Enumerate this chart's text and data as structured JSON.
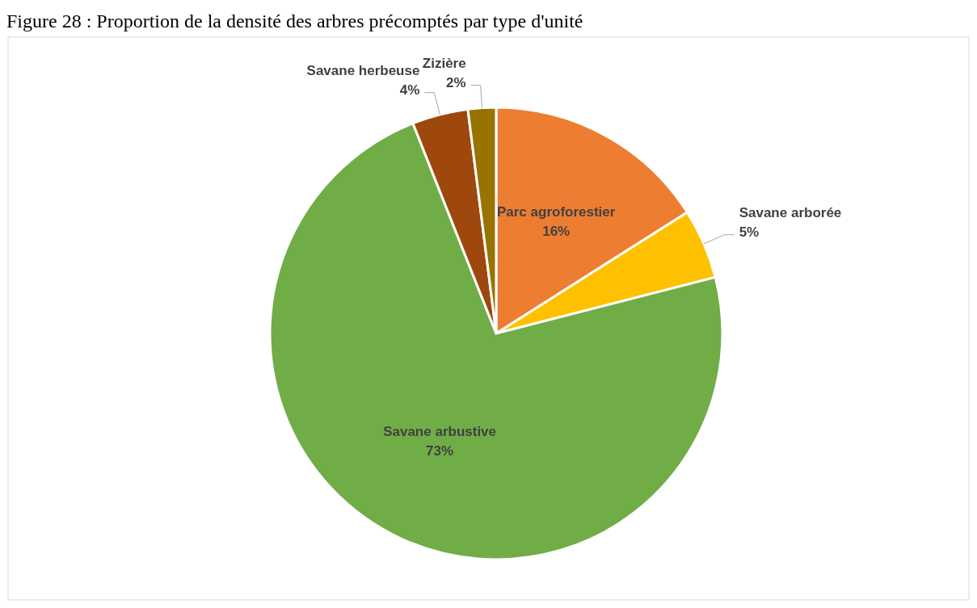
{
  "chart_data": {
    "type": "pie",
    "title": "Figure 28 : Proportion de la densité des arbres précomptés par type d'unité",
    "categories": [
      "Parc agroforestier",
      "Savane arborée",
      "Savane arbustive",
      "Savane herbeuse",
      "Zizière"
    ],
    "values": [
      16,
      5,
      73,
      4,
      2
    ],
    "colors": [
      "#ed7d31",
      "#ffc000",
      "#70ad47",
      "#9e480e",
      "#997300"
    ],
    "value_labels": [
      "16%",
      "5%",
      "73%",
      "4%",
      "2%"
    ]
  }
}
